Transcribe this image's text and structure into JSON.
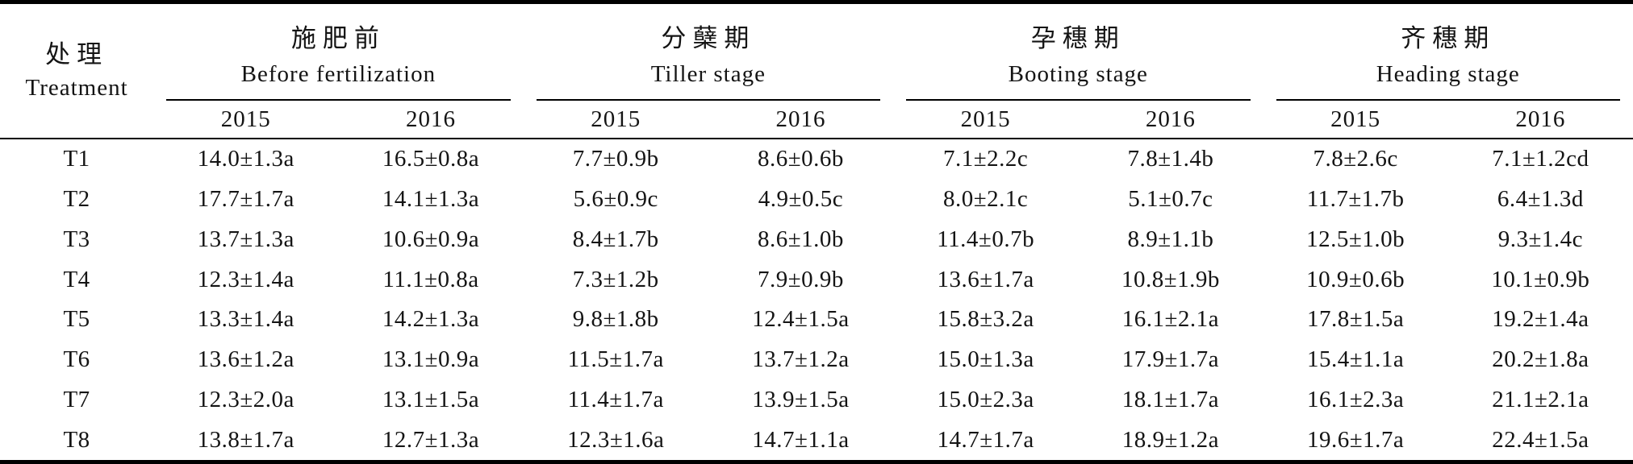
{
  "table": {
    "treatment_header": {
      "zh": "处理",
      "en": "Treatment"
    },
    "groups": [
      {
        "zh": "施肥前",
        "en": "Before fertilization",
        "years": [
          "2015",
          "2016"
        ]
      },
      {
        "zh": "分蘖期",
        "en": "Tiller stage",
        "years": [
          "2015",
          "2016"
        ]
      },
      {
        "zh": "孕穗期",
        "en": "Booting stage",
        "years": [
          "2015",
          "2016"
        ]
      },
      {
        "zh": "齐穗期",
        "en": "Heading stage",
        "years": [
          "2015",
          "2016"
        ]
      }
    ],
    "rows": [
      {
        "treatment": "T1",
        "values": [
          "14.0±1.3a",
          "16.5±0.8a",
          "7.7±0.9b",
          "8.6±0.6b",
          "7.1±2.2c",
          "7.8±1.4b",
          "7.8±2.6c",
          "7.1±1.2cd"
        ]
      },
      {
        "treatment": "T2",
        "values": [
          "17.7±1.7a",
          "14.1±1.3a",
          "5.6±0.9c",
          "4.9±0.5c",
          "8.0±2.1c",
          "5.1±0.7c",
          "11.7±1.7b",
          "6.4±1.3d"
        ]
      },
      {
        "treatment": "T3",
        "values": [
          "13.7±1.3a",
          "10.6±0.9a",
          "8.4±1.7b",
          "8.6±1.0b",
          "11.4±0.7b",
          "8.9±1.1b",
          "12.5±1.0b",
          "9.3±1.4c"
        ]
      },
      {
        "treatment": "T4",
        "values": [
          "12.3±1.4a",
          "11.1±0.8a",
          "7.3±1.2b",
          "7.9±0.9b",
          "13.6±1.7a",
          "10.8±1.9b",
          "10.9±0.6b",
          "10.1±0.9b"
        ]
      },
      {
        "treatment": "T5",
        "values": [
          "13.3±1.4a",
          "14.2±1.3a",
          "9.8±1.8b",
          "12.4±1.5a",
          "15.8±3.2a",
          "16.1±2.1a",
          "17.8±1.5a",
          "19.2±1.4a"
        ]
      },
      {
        "treatment": "T6",
        "values": [
          "13.6±1.2a",
          "13.1±0.9a",
          "11.5±1.7a",
          "13.7±1.2a",
          "15.0±1.3a",
          "17.9±1.7a",
          "15.4±1.1a",
          "20.2±1.8a"
        ]
      },
      {
        "treatment": "T7",
        "values": [
          "12.3±2.0a",
          "13.1±1.5a",
          "11.4±1.7a",
          "13.9±1.5a",
          "15.0±2.3a",
          "18.1±1.7a",
          "16.1±2.3a",
          "21.1±2.1a"
        ]
      },
      {
        "treatment": "T8",
        "values": [
          "13.8±1.7a",
          "12.7±1.3a",
          "12.3±1.6a",
          "14.7±1.1a",
          "14.7±1.7a",
          "18.9±1.2a",
          "19.6±1.7a",
          "22.4±1.5a"
        ]
      }
    ]
  }
}
